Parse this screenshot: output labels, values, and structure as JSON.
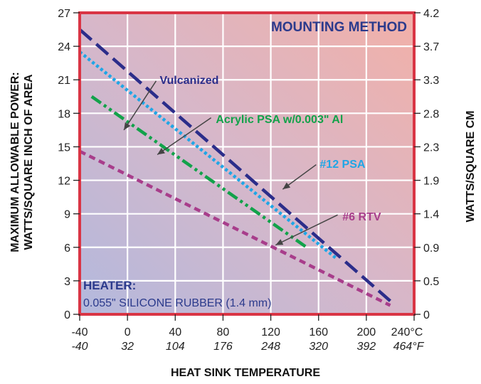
{
  "colors": {
    "frame": "#d93545",
    "grid": "#ffffff",
    "bg_top_right": "#f2b0a8",
    "bg_bottom_left": "#b3b9dd",
    "title": "#2b3a8c"
  },
  "chart_data": {
    "type": "line",
    "title": "MOUNTING METHOD",
    "xlabel": "HEAT SINK TEMPERATURE",
    "ylabel_left": [
      "MAXIMUM ALLOWABLE POWER:",
      "WATTS/SQUARE INCH OF AREA"
    ],
    "ylabel_right": "WATTS/SQUARE CM",
    "xlim": [
      -40,
      240
    ],
    "ylim": [
      0,
      27
    ],
    "x_ticks_c": [
      "-40",
      "0",
      "40",
      "80",
      "120",
      "160",
      "200",
      "240°C"
    ],
    "x_ticks_f": [
      "-40",
      "32",
      "104",
      "176",
      "248",
      "320",
      "392",
      "464°F"
    ],
    "y_ticks_left": [
      "0",
      "3",
      "6",
      "9",
      "12",
      "15",
      "18",
      "21",
      "24",
      "27"
    ],
    "y_ticks_right": [
      "0",
      "0.5",
      "0.9",
      "1.4",
      "1.9",
      "2.3",
      "2.8",
      "3.3",
      "3.7",
      "4.2"
    ],
    "grid": true,
    "series": [
      {
        "name": "Vulcanized",
        "color": "#2b2d8a",
        "dash": "long-dash",
        "x": [
          -40,
          220
        ],
        "y": [
          25.5,
          1.2
        ],
        "label_pos": [
          -5,
          16.8
        ]
      },
      {
        "name": "#12 PSA",
        "color": "#1fa6e6",
        "dash": "dot",
        "x": [
          -40,
          175
        ],
        "y": [
          23.5,
          5.0
        ],
        "label_pos": [
          158,
          11.8
        ]
      },
      {
        "name": "Acrylic PSA w/0.003\" Al",
        "color": "#12a24a",
        "dash": "dash-dot-dot",
        "x": [
          -30,
          150
        ],
        "y": [
          19.5,
          6.0
        ],
        "label_pos": [
          22,
          19.5
        ]
      },
      {
        "name": "#6 RTV",
        "color": "#a83d8b",
        "dash": "short-dash",
        "x": [
          -40,
          220
        ],
        "y": [
          14.6,
          0.8
        ],
        "label_pos": [
          122,
          6.3
        ]
      }
    ],
    "series_labels": [
      {
        "text": "Vulcanized",
        "color": "#2b2d8a",
        "x": 27,
        "y": 21.0
      },
      {
        "text": "Acrylic PSA w/0.003\" Al",
        "color": "#12a24a",
        "x": 74,
        "y": 17.5
      },
      {
        "text": "#12 PSA",
        "color": "#1fa6e6",
        "x": 161,
        "y": 13.5
      },
      {
        "text": "#6 RTV",
        "color": "#a83d8b",
        "x": 180,
        "y": 8.8
      }
    ],
    "annotation": {
      "title": "HEATER:",
      "text": "0.055\" SILICONE RUBBER (1.4 mm)"
    }
  }
}
